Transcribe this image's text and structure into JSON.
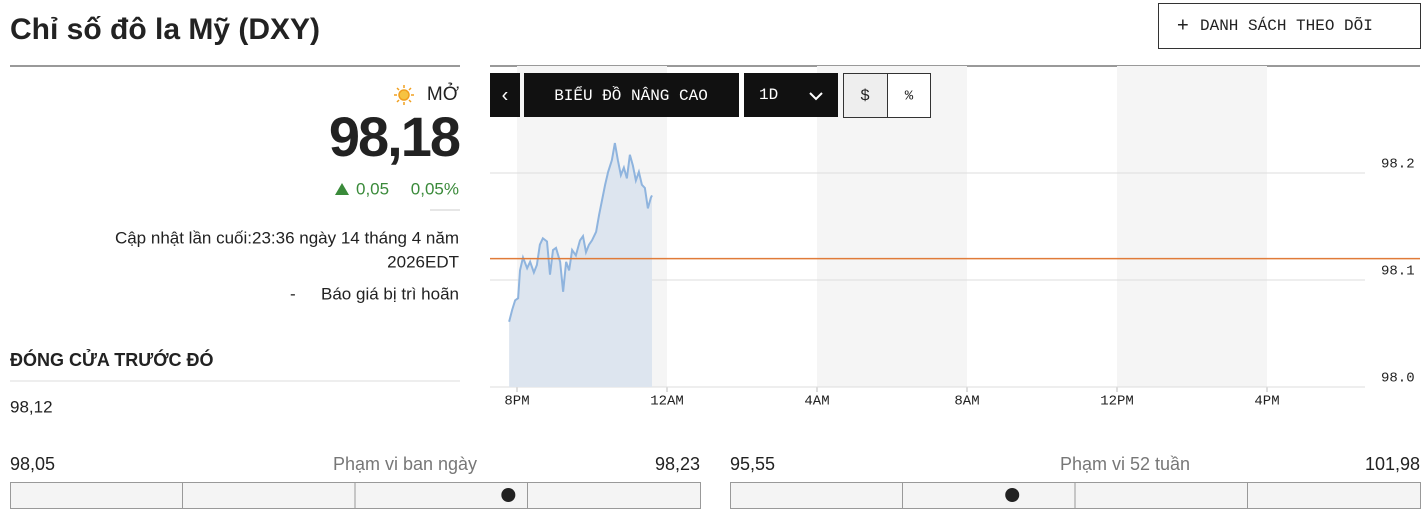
{
  "header": {
    "title": "Chỉ số đô la Mỹ (DXY)",
    "watchlist_button": "DANH SÁCH THEO DÕI"
  },
  "quote": {
    "status": "MỞ",
    "price": 98.18,
    "price_label": "98,18",
    "change": "0,05",
    "change_percent": "0,05%",
    "updated": "Cập nhật lần cuối:23:36 ngày 14 tháng 4 năm",
    "updated_zone": "2026EDT",
    "delay_note": "Báo giá bị trì hoãn"
  },
  "previous_close": {
    "label": "ĐÓNG CỬA TRƯỚC ĐÓ",
    "value": 98.12,
    "value_label": "98,12"
  },
  "toolbar": {
    "back": "‹",
    "advanced": "BIỂU ĐỒ NÂNG CAO",
    "period": "1D",
    "currency": "$",
    "percent": "%"
  },
  "ranges": [
    {
      "label": "Phạm vi ban ngày",
      "values": [
        98.05,
        98.23
      ],
      "value_labels": [
        "98,05",
        "98,23"
      ]
    },
    {
      "label": "Phạm vi 52 tuần",
      "values": [
        95.55,
        101.98
      ],
      "value_labels": [
        "95,55",
        "101,98"
      ]
    }
  ],
  "chart_data": {
    "type": "area",
    "color": "#8fb4de",
    "area_color": "#dde5ef",
    "reference_color": "#e07b39",
    "x": [
      19.79,
      19.87,
      19.95,
      20.03,
      20.08,
      20.16,
      20.27,
      20.35,
      20.45,
      20.53,
      20.61,
      20.69,
      20.8,
      20.88,
      20.96,
      21.04,
      21.15,
      21.23,
      21.31,
      21.39,
      21.47,
      21.57,
      21.68,
      21.76,
      21.84,
      21.92,
      22.0,
      22.11,
      22.19,
      22.27,
      22.35,
      22.43,
      22.53,
      22.61,
      22.69,
      22.77,
      22.85,
      22.93,
      23.01,
      23.09,
      23.17,
      23.25,
      23.33,
      23.41,
      23.49,
      23.57,
      23.6
    ],
    "values": [
      98.061,
      98.072,
      98.081,
      98.083,
      98.109,
      98.121,
      98.111,
      98.117,
      98.107,
      98.114,
      98.133,
      98.139,
      98.136,
      98.105,
      98.128,
      98.13,
      98.117,
      98.089,
      98.117,
      98.109,
      98.128,
      98.123,
      98.137,
      98.141,
      98.126,
      98.133,
      98.137,
      98.145,
      98.161,
      98.175,
      98.189,
      98.201,
      98.212,
      98.228,
      98.212,
      98.198,
      98.205,
      98.195,
      98.217,
      98.207,
      98.193,
      98.201,
      98.189,
      98.186,
      98.167,
      98.177,
      98.179
    ],
    "xlim": [
      19.28,
      44.08
    ],
    "xticks": [
      {
        "value": 20,
        "label": "8PM"
      },
      {
        "value": 24,
        "label": "12AM"
      },
      {
        "value": 28,
        "label": "4AM"
      },
      {
        "value": 32,
        "label": "8AM"
      },
      {
        "value": 36,
        "label": "12PM"
      },
      {
        "value": 40,
        "label": "4PM"
      }
    ],
    "ylim": [
      98.0,
      98.3
    ],
    "yticks": [
      {
        "value": 98,
        "label": "98.0"
      },
      98.1,
      98.2
    ],
    "grid": true
  }
}
